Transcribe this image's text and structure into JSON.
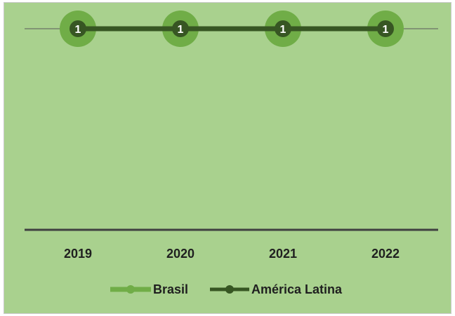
{
  "chart_data": {
    "type": "line",
    "categories": [
      "2019",
      "2020",
      "2021",
      "2022"
    ],
    "series": [
      {
        "name": "Brasil",
        "values": [
          1,
          1,
          1,
          1
        ],
        "color": "#70ad47"
      },
      {
        "name": "América Latina",
        "values": [
          1,
          1,
          1,
          1
        ],
        "color": "#375623"
      }
    ],
    "data_labels": [
      "1",
      "1",
      "1",
      "1"
    ],
    "title": "",
    "xlabel": "",
    "ylabel": "",
    "ylim": [
      0,
      1
    ],
    "grid": true,
    "legend": "bottom",
    "background_color": "#a9d18e"
  }
}
